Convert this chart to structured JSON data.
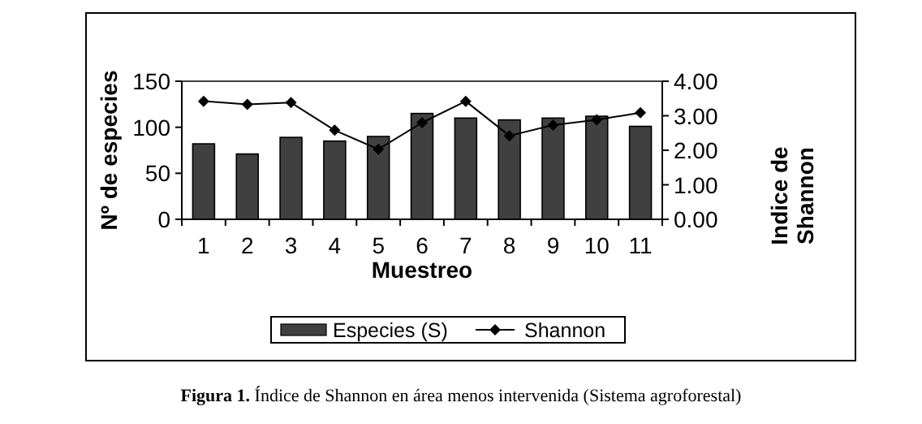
{
  "chart_data": {
    "type": "bar",
    "xlabel": "Muestreo",
    "ylabel": "Nº de especies",
    "y2label": "Indice de Shannon",
    "categories": [
      "1",
      "2",
      "3",
      "4",
      "5",
      "6",
      "7",
      "8",
      "9",
      "10",
      "11"
    ],
    "series": [
      {
        "name": "Especies (S)",
        "color": "#404040",
        "values": [
          82,
          71,
          89,
          85,
          90,
          115,
          110,
          108,
          110,
          112,
          101
        ]
      },
      {
        "name": "Shannon",
        "type": "line",
        "axis": "y2",
        "color": "#000000",
        "marker": "diamond",
        "values": [
          3.42,
          3.33,
          3.38,
          2.58,
          2.03,
          2.8,
          3.42,
          2.42,
          2.73,
          2.88,
          3.09
        ]
      }
    ],
    "ylim": [
      0,
      150
    ],
    "yticks": [
      0,
      50,
      100,
      150
    ],
    "y2lim": [
      0,
      4
    ],
    "y2ticks": [
      {
        "value": 0,
        "label": "0.00"
      },
      {
        "value": 1,
        "label": "1.00"
      },
      {
        "value": 2,
        "label": "2.00"
      },
      {
        "value": 3,
        "label": "3.00"
      },
      {
        "value": 4,
        "label": "4.00"
      }
    ],
    "legend": "bottom",
    "annotations": [
      "Figura 1. Índice de Shannon en área menos intervenida (Sistema agroforestal)"
    ]
  }
}
